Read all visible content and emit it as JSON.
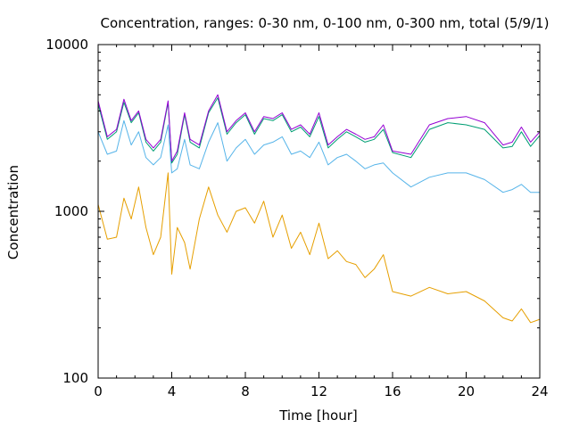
{
  "chart_data": {
    "type": "line",
    "title": "Concentration, ranges: 0-30 nm, 0-100 nm, 0-300 nm, total (5/9/1)",
    "xlabel": "Time [hour]",
    "ylabel": "Concentration",
    "xlim": [
      0,
      24
    ],
    "ylim": [
      100,
      10000
    ],
    "yscale": "log",
    "x_ticks": [
      0,
      4,
      8,
      12,
      16,
      20,
      24
    ],
    "x_tick_labels": [
      "0",
      "4",
      "8",
      "12",
      "16",
      "20",
      "24"
    ],
    "y_ticks": [
      100,
      1000,
      10000
    ],
    "y_tick_labels": [
      "100",
      "1000",
      "10000"
    ],
    "grid": false,
    "legend": "none",
    "x": [
      0,
      0.5,
      1,
      1.4,
      1.8,
      2.2,
      2.6,
      3,
      3.4,
      3.8,
      4,
      4.3,
      4.7,
      5,
      5.5,
      6,
      6.5,
      7,
      7.5,
      8,
      8.5,
      9,
      9.5,
      10,
      10.5,
      11,
      11.5,
      12,
      12.5,
      13,
      13.5,
      14,
      14.5,
      15,
      15.5,
      16,
      17,
      18,
      19,
      20,
      21,
      22,
      22.5,
      23,
      23.5,
      24
    ],
    "series": [
      {
        "color": "#9400d3",
        "values": [
          4600,
          2800,
          3100,
          4700,
          3500,
          4000,
          2700,
          2400,
          2700,
          4600,
          2000,
          2300,
          3900,
          2700,
          2500,
          4000,
          5000,
          3000,
          3500,
          3900,
          3000,
          3700,
          3600,
          3900,
          3100,
          3300,
          2900,
          3900,
          2500,
          2800,
          3100,
          2900,
          2700,
          2800,
          3300,
          2300,
          2200,
          3300,
          3600,
          3700,
          3400,
          2500,
          2600,
          3200,
          2600,
          3000
        ]
      },
      {
        "color": "#009e73",
        "values": [
          4400,
          2700,
          3000,
          4500,
          3400,
          3900,
          2600,
          2300,
          2600,
          4500,
          1950,
          2200,
          3800,
          2600,
          2400,
          3900,
          4800,
          2900,
          3400,
          3800,
          2900,
          3600,
          3500,
          3800,
          3000,
          3200,
          2800,
          3700,
          2400,
          2700,
          3000,
          2800,
          2600,
          2700,
          3100,
          2250,
          2100,
          3100,
          3400,
          3300,
          3100,
          2400,
          2450,
          3000,
          2450,
          2850
        ]
      },
      {
        "color": "#56b4e9",
        "values": [
          3000,
          2200,
          2300,
          3500,
          2500,
          3000,
          2100,
          1900,
          2100,
          3300,
          1700,
          1800,
          2700,
          1900,
          1800,
          2600,
          3400,
          2000,
          2400,
          2700,
          2200,
          2500,
          2600,
          2800,
          2200,
          2300,
          2100,
          2600,
          1900,
          2100,
          2200,
          2000,
          1800,
          1900,
          1950,
          1700,
          1400,
          1600,
          1700,
          1700,
          1550,
          1300,
          1350,
          1450,
          1300,
          1300
        ]
      },
      {
        "color": "#e69f00",
        "values": [
          1100,
          680,
          700,
          1200,
          900,
          1400,
          800,
          550,
          700,
          1700,
          420,
          800,
          650,
          450,
          900,
          1400,
          950,
          750,
          1000,
          1050,
          850,
          1150,
          700,
          950,
          600,
          750,
          550,
          850,
          520,
          580,
          500,
          480,
          400,
          450,
          550,
          330,
          310,
          350,
          320,
          330,
          290,
          230,
          220,
          260,
          215,
          225
        ]
      }
    ]
  }
}
